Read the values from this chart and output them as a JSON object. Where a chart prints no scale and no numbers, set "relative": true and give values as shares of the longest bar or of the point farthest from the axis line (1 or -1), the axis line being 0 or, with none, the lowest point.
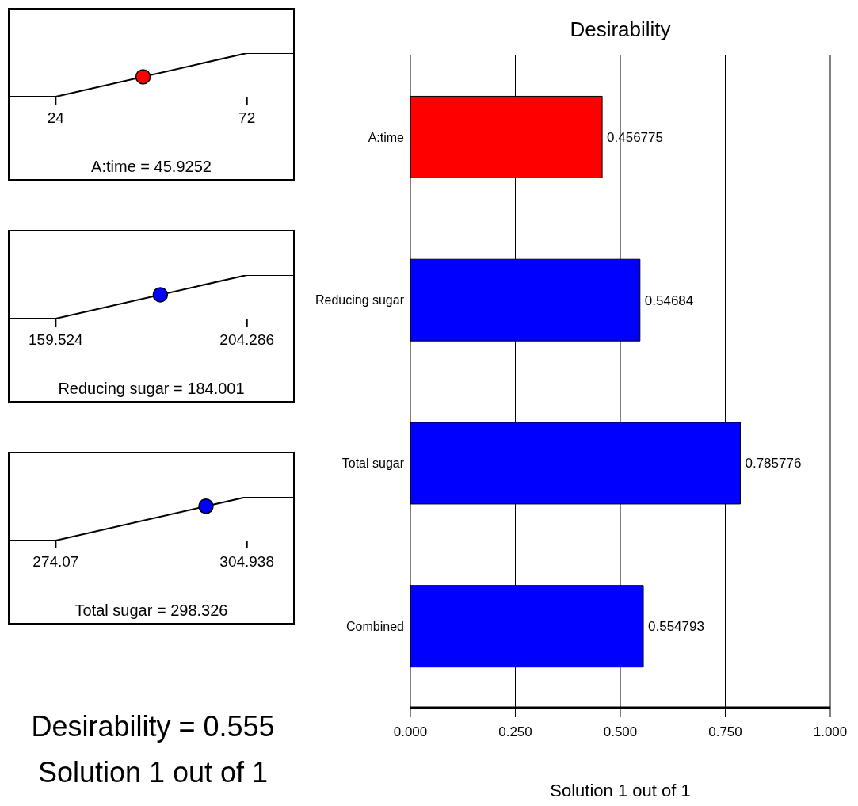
{
  "chart_data": [
    {
      "type": "line",
      "xlabel": "A:time = 45.9252",
      "relative": true,
      "xlim": [
        12.4,
        83.6
      ],
      "xticks": [
        24,
        72
      ],
      "tick_labels": "x",
      "series": [
        {
          "type": "line",
          "x": [
            12.4,
            24,
            72,
            83.6
          ],
          "values": [
            0,
            0,
            1,
            1
          ],
          "color": "#000000"
        },
        {
          "type": "scatter",
          "x": [
            45.9252
          ],
          "values": [
            0.456775
          ],
          "color": "#ff0000",
          "marker": "circle"
        }
      ]
    },
    {
      "type": "line",
      "xlabel": "Reducing sugar = 184.001",
      "relative": true,
      "xlim": [
        148.7,
        215.1
      ],
      "xticks": [
        159.524,
        204.286
      ],
      "tick_labels": "x",
      "series": [
        {
          "type": "line",
          "x": [
            148.7,
            159.524,
            204.286,
            215.1
          ],
          "values": [
            0,
            0,
            1,
            1
          ],
          "color": "#000000"
        },
        {
          "type": "scatter",
          "x": [
            184.001
          ],
          "values": [
            0.54684
          ],
          "color": "#0000ff",
          "marker": "circle"
        }
      ]
    },
    {
      "type": "line",
      "xlabel": "Total sugar = 298.326",
      "relative": true,
      "xlim": [
        266.6,
        312.4
      ],
      "xticks": [
        274.07,
        304.938
      ],
      "tick_labels": "x",
      "series": [
        {
          "type": "line",
          "x": [
            266.6,
            274.07,
            304.938,
            312.4
          ],
          "values": [
            0,
            0,
            1,
            1
          ],
          "color": "#000000"
        },
        {
          "type": "scatter",
          "x": [
            298.326
          ],
          "values": [
            0.785776
          ],
          "color": "#0000ff",
          "marker": "circle"
        }
      ]
    },
    {
      "type": "bar",
      "orientation": "horizontal",
      "title": "Desirability",
      "xlabel": "Solution 1 out of 1",
      "categories": [
        "A:time",
        "Reducing sugar",
        "Total sugar",
        "Combined"
      ],
      "values": [
        0.456775,
        0.54684,
        0.785776,
        0.554793
      ],
      "colors": [
        "#ff0000",
        "#0000ff",
        "#0000ff",
        "#0000ff"
      ],
      "xlim": [
        0,
        1
      ],
      "xticks": [
        {
          "value": 0,
          "label": "0.000"
        },
        {
          "value": 0.25,
          "label": "0.250"
        },
        {
          "value": 0.5,
          "label": "0.500"
        },
        {
          "value": 0.75,
          "label": "0.750"
        },
        {
          "value": 1,
          "label": "1.000"
        }
      ],
      "grid": "x",
      "data_labels": true,
      "annotations": [
        "Desirability = 0.555",
        "Solution 1 out of 1"
      ]
    }
  ]
}
